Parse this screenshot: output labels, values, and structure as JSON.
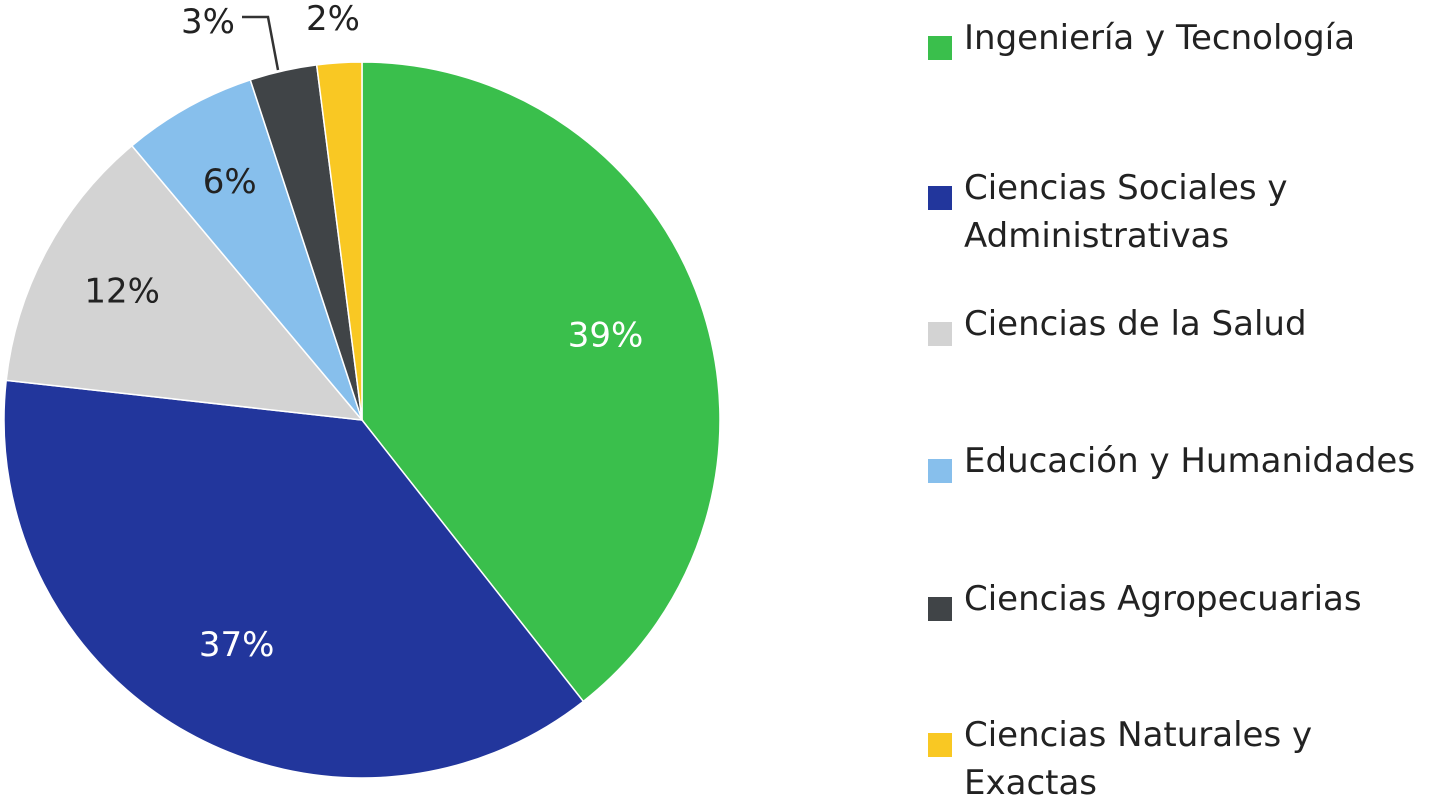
{
  "chart_data": {
    "type": "pie",
    "title": "",
    "start_angle_deg": 0,
    "direction": "clockwise",
    "slices": [
      {
        "label": "Ingeniería y Tecnología",
        "value": 39,
        "display": "39%",
        "color": "#3abf4c",
        "label_color": "#ffffff"
      },
      {
        "label": "Ciencias Sociales y\nAdministrativas",
        "value": 37,
        "display": "37%",
        "color": "#22369c",
        "label_color": "#ffffff"
      },
      {
        "label": "Ciencias de la Salud",
        "value": 12,
        "display": "12%",
        "color": "#d3d3d3",
        "label_color": "#222222"
      },
      {
        "label": "Educación y Humanidades",
        "value": 6,
        "display": "6%",
        "color": "#87bfec",
        "label_color": "#222222"
      },
      {
        "label": "Ciencias Agropecuarias",
        "value": 3,
        "display": "3%",
        "color": "#404447",
        "label_color": "#222222"
      },
      {
        "label": "Ciencias Naturales y\nExactas",
        "value": 2,
        "display": "2%",
        "color": "#f9c823",
        "label_color": "#222222"
      }
    ],
    "legend_position": "right",
    "grid": false
  }
}
